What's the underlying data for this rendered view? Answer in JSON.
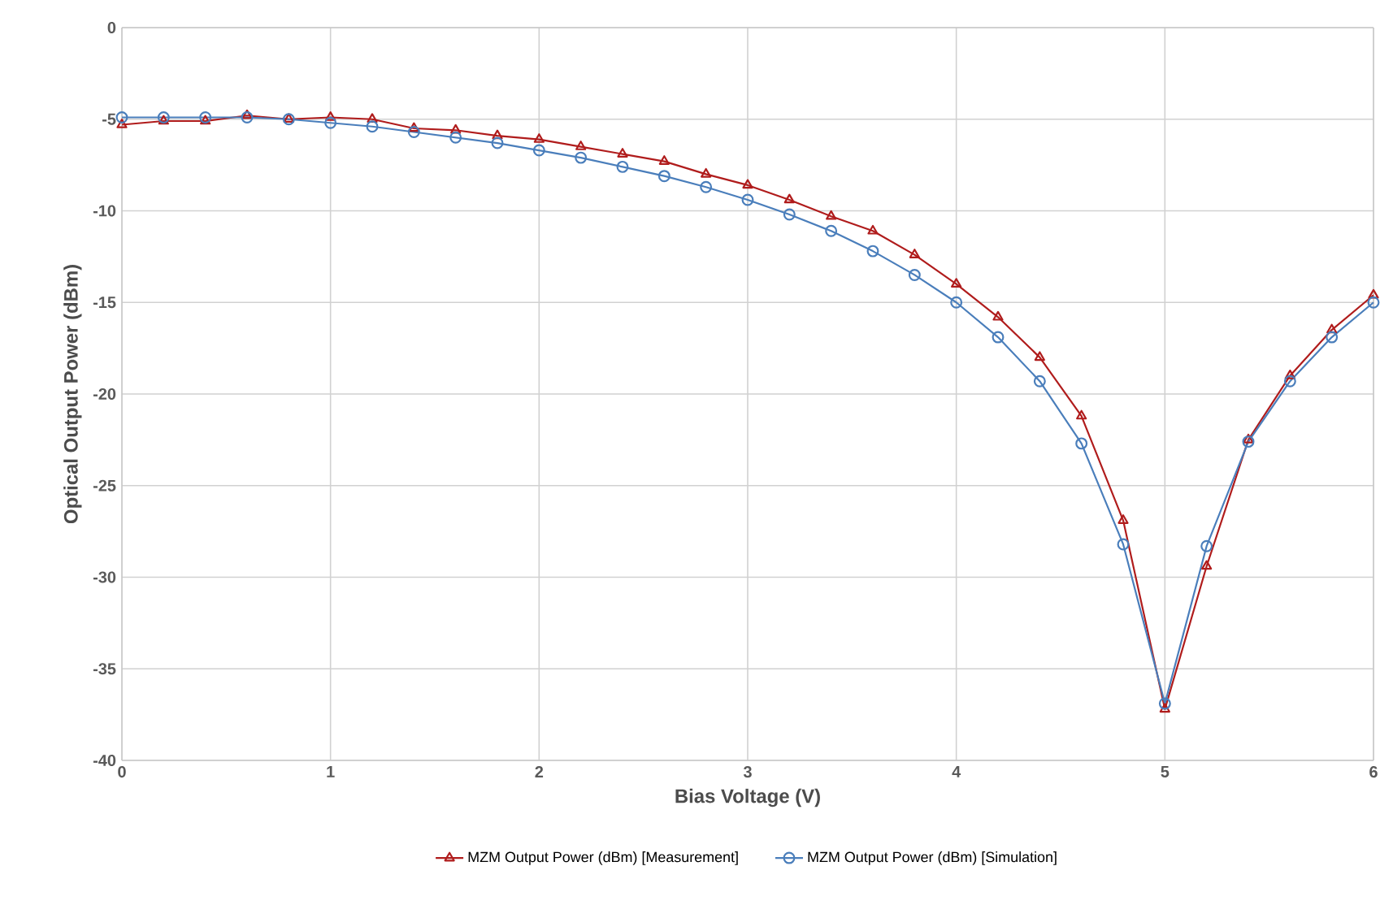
{
  "chart_data": {
    "type": "line",
    "xlabel": "Bias Voltage (V)",
    "ylabel": "Optical Output Power (dBm)",
    "x": [
      0,
      0.2,
      0.4,
      0.6,
      0.8,
      1.0,
      1.2,
      1.4,
      1.6,
      1.8,
      2.0,
      2.2,
      2.4,
      2.6,
      2.8,
      3.0,
      3.2,
      3.4,
      3.6,
      3.8,
      4.0,
      4.2,
      4.4,
      4.6,
      4.8,
      5.0,
      5.2,
      5.4,
      5.6,
      5.8,
      6.0
    ],
    "series": [
      {
        "name": "MZM Output Power (dBm) [Measurement]",
        "color": "#b01c1c",
        "marker": "triangle",
        "values": [
          -5.3,
          -5.1,
          -5.1,
          -4.8,
          -5.0,
          -4.9,
          -5.0,
          -5.5,
          -5.6,
          -5.9,
          -6.1,
          -6.5,
          -6.9,
          -7.3,
          -8.0,
          -8.6,
          -9.4,
          -10.3,
          -11.1,
          -12.4,
          -14.0,
          -15.8,
          -18.0,
          -21.2,
          -26.9,
          -37.2,
          -29.4,
          -22.5,
          -19.0,
          -16.5,
          -14.6
        ]
      },
      {
        "name": "MZM Output Power (dBm) [Simulation]",
        "color": "#4a7ebb",
        "marker": "circle",
        "values": [
          -4.9,
          -4.9,
          -4.9,
          -4.9,
          -5.0,
          -5.2,
          -5.4,
          -5.7,
          -6.0,
          -6.3,
          -6.7,
          -7.1,
          -7.6,
          -8.1,
          -8.7,
          -9.4,
          -10.2,
          -11.1,
          -12.2,
          -13.5,
          -15.0,
          -16.9,
          -19.3,
          -22.7,
          -28.2,
          -36.9,
          -28.3,
          -22.6,
          -19.3,
          -16.9,
          -15.0
        ]
      }
    ],
    "xlim": [
      0,
      6
    ],
    "xticks": [
      0,
      1,
      2,
      3,
      4,
      5,
      6
    ],
    "ylim": [
      -40,
      0
    ],
    "yticks": [
      -40,
      -35,
      -30,
      -25,
      -20,
      -15,
      -10,
      -5,
      0
    ],
    "grid": true,
    "legend": "bottom",
    "line_style": "solid"
  }
}
